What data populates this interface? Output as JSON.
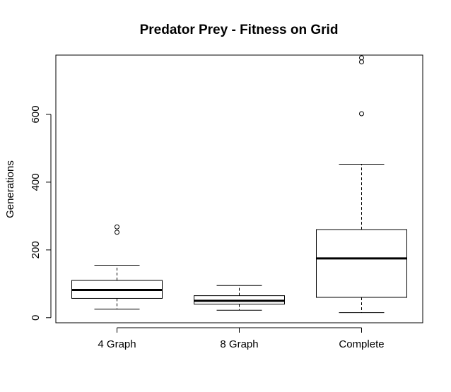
{
  "chart_data": {
    "type": "boxplot",
    "title": "Predator Prey - Fitness on Grid",
    "xlabel": "",
    "ylabel": "Generations",
    "ylim": [
      -15,
      775
    ],
    "yticks": [
      0,
      200,
      400,
      600
    ],
    "grid": false,
    "categories": [
      "4 Graph",
      "8 Graph",
      "Complete"
    ],
    "boxes": [
      {
        "category": "4 Graph",
        "whisker_low": 25,
        "q1": 57,
        "median": 82,
        "q3": 110,
        "whisker_high": 155,
        "outliers": [
          252,
          268
        ]
      },
      {
        "category": "8 Graph",
        "whisker_low": 22,
        "q1": 40,
        "median": 50,
        "q3": 65,
        "whisker_high": 95,
        "outliers": []
      },
      {
        "category": "Complete",
        "whisker_low": 15,
        "q1": 60,
        "median": 175,
        "q3": 260,
        "whisker_high": 453,
        "outliers": [
          602,
          755,
          767
        ]
      }
    ]
  }
}
